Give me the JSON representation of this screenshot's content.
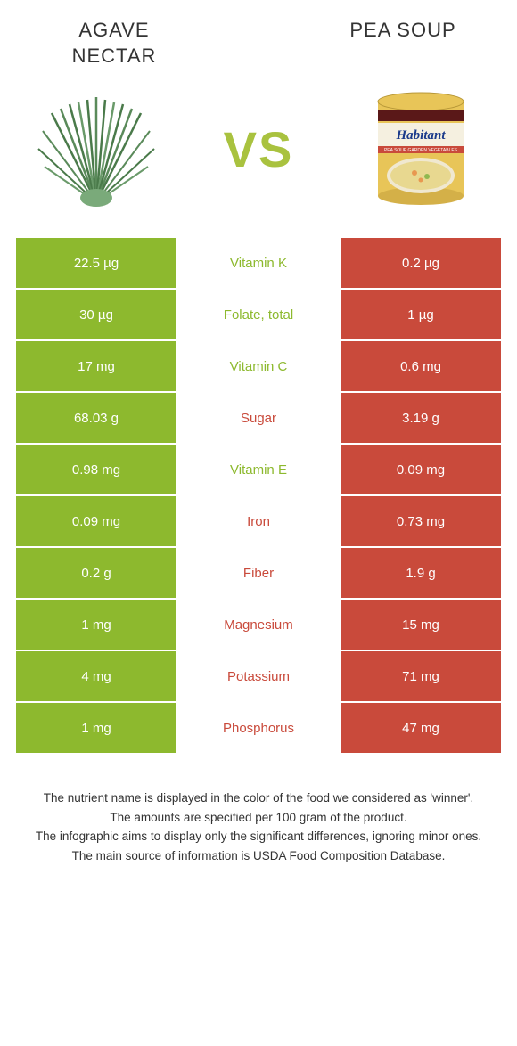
{
  "header": {
    "left_title_line1": "AGAVE",
    "left_title_line2": "NECTAR",
    "right_title": "PEA SOUP",
    "vs": "VS"
  },
  "colors": {
    "green": "#8db92e",
    "red": "#c94a3b",
    "white": "#ffffff"
  },
  "rows": [
    {
      "label": "Vitamin K",
      "left": "22.5 µg",
      "right": "0.2 µg",
      "winner": "left"
    },
    {
      "label": "Folate, total",
      "left": "30 µg",
      "right": "1 µg",
      "winner": "left"
    },
    {
      "label": "Vitamin C",
      "left": "17 mg",
      "right": "0.6 mg",
      "winner": "left"
    },
    {
      "label": "Sugar",
      "left": "68.03 g",
      "right": "3.19 g",
      "winner": "right"
    },
    {
      "label": "Vitamin E",
      "left": "0.98 mg",
      "right": "0.09 mg",
      "winner": "left"
    },
    {
      "label": "Iron",
      "left": "0.09 mg",
      "right": "0.73 mg",
      "winner": "right"
    },
    {
      "label": "Fiber",
      "left": "0.2 g",
      "right": "1.9 g",
      "winner": "right"
    },
    {
      "label": "Magnesium",
      "left": "1 mg",
      "right": "15 mg",
      "winner": "right"
    },
    {
      "label": "Potassium",
      "left": "4 mg",
      "right": "71 mg",
      "winner": "right"
    },
    {
      "label": "Phosphorus",
      "left": "1 mg",
      "right": "47 mg",
      "winner": "right"
    }
  ],
  "footer": {
    "line1": "The nutrient name is displayed in the color of the food we considered as 'winner'.",
    "line2": "The amounts are specified per 100 gram of the product.",
    "line3": "The infographic aims to display only the significant differences, ignoring minor ones.",
    "line4": "The main source of information is USDA Food Composition Database."
  }
}
